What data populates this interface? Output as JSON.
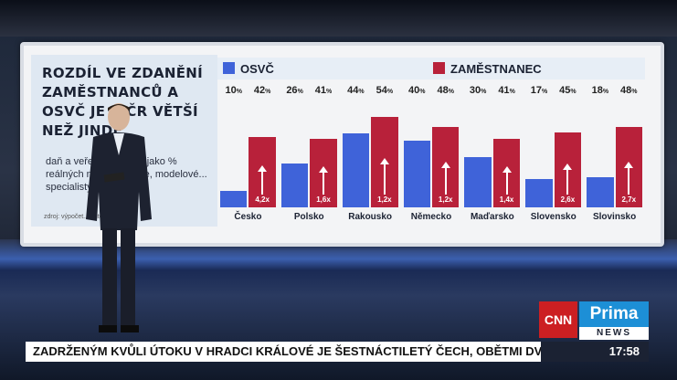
{
  "headline": "ROZDÍL VE ZDANĚNÍ ZAMĚSTNANCŮ A OSVČ JE V ČR VĚTŠÍ NEŽ JINDE",
  "subtitle": "daň a veřejné pojistné jako % reálných nákladů práce, modelové... specialisty",
  "source": "zdroj: výpočet...   autor: sta",
  "ticker": "ZADRŽENÝM KVŮLI ÚTOKU V HRADCI KRÁLOVÉ JE ŠESTNÁCTILETÝ ČECH, OBĚTMI DVĚ ŽENY.",
  "clock": "17:58",
  "logos": {
    "cnn": "CNN",
    "prima": "Prima",
    "news": "NEWS"
  },
  "colors": {
    "osvc": "#3f63d9",
    "zamestnanec": "#b8213a"
  },
  "chart_data": {
    "type": "bar",
    "categories": [
      "Česko",
      "Polsko",
      "Rakousko",
      "Německo",
      "Maďarsko",
      "Slovensko",
      "Slovinsko"
    ],
    "series": [
      {
        "name": "OSVČ",
        "values": [
          10,
          26,
          44,
          40,
          30,
          17,
          18
        ]
      },
      {
        "name": "ZAMĚSTNANEC",
        "values": [
          42,
          41,
          54,
          48,
          41,
          45,
          48
        ]
      }
    ],
    "value_labels": {
      "osvc": [
        "10 %",
        "26 %",
        "44 %",
        "40 %",
        "30 %",
        "17 %",
        "18 %"
      ],
      "zamestnanec": [
        "42 %",
        "41 %",
        "54 %",
        "48 %",
        "41 %",
        "45 %",
        "48 %"
      ]
    },
    "ratios": [
      "4,2x",
      "1,6x",
      "1,2x",
      "1,2x",
      "1,4x",
      "2,6x",
      "2,7x"
    ],
    "ylim": [
      0,
      60
    ]
  }
}
